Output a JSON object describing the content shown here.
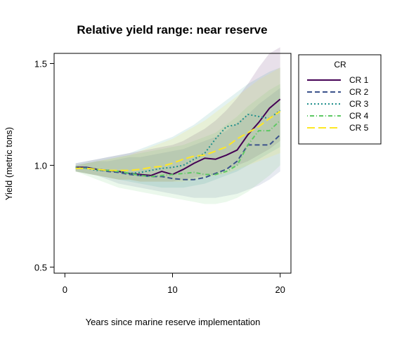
{
  "chart_data": {
    "type": "line",
    "title": "Relative yield range: near reserve",
    "xlabel": "Years since marine reserve implementation",
    "ylabel": "Yield (metric tons)",
    "xlim": [
      -1,
      21
    ],
    "ylim": [
      0.47,
      1.55
    ],
    "x_ticks": [
      0,
      10,
      20
    ],
    "x_tick_labels": [
      "0",
      "10",
      "20"
    ],
    "y_ticks": [
      0.5,
      1.0,
      1.5
    ],
    "y_tick_labels": [
      "0.5",
      "1.0",
      "1.5"
    ],
    "grid": false,
    "legend": {
      "title": "CR",
      "position": "right"
    },
    "x": [
      1,
      2,
      3,
      4,
      5,
      6,
      7,
      8,
      9,
      10,
      11,
      12,
      13,
      14,
      15,
      16,
      17,
      18,
      19,
      20
    ],
    "series": [
      {
        "name": "CR 1",
        "color": "#440154",
        "dash": "solid",
        "values": [
          0.99,
          0.99,
          0.98,
          0.975,
          0.97,
          0.96,
          0.955,
          0.95,
          0.97,
          0.955,
          0.98,
          1.01,
          1.035,
          1.03,
          1.05,
          1.075,
          1.15,
          1.21,
          1.28,
          1.325
        ],
        "band_upper": [
          1.01,
          1.02,
          1.03,
          1.04,
          1.05,
          1.06,
          1.07,
          1.08,
          1.09,
          1.1,
          1.12,
          1.15,
          1.18,
          1.22,
          1.27,
          1.33,
          1.4,
          1.48,
          1.55,
          1.58
        ],
        "band_lower": [
          0.97,
          0.96,
          0.95,
          0.94,
          0.93,
          0.93,
          0.92,
          0.92,
          0.92,
          0.92,
          0.93,
          0.94,
          0.95,
          0.96,
          0.98,
          1.0,
          1.02,
          1.05,
          1.08,
          1.12
        ]
      },
      {
        "name": "CR 2",
        "color": "#3b528b",
        "dash": "dashed",
        "values": [
          0.985,
          0.99,
          0.98,
          0.97,
          0.965,
          0.955,
          0.95,
          0.945,
          0.945,
          0.935,
          0.93,
          0.93,
          0.94,
          0.96,
          0.98,
          1.02,
          1.1,
          1.1,
          1.1,
          1.15
        ],
        "band_upper": [
          1.0,
          1.01,
          1.02,
          1.02,
          1.03,
          1.04,
          1.04,
          1.05,
          1.06,
          1.07,
          1.08,
          1.1,
          1.12,
          1.14,
          1.17,
          1.21,
          1.25,
          1.3,
          1.34,
          1.38
        ],
        "band_lower": [
          0.97,
          0.96,
          0.95,
          0.93,
          0.91,
          0.9,
          0.89,
          0.88,
          0.87,
          0.86,
          0.85,
          0.84,
          0.84,
          0.84,
          0.85,
          0.86,
          0.88,
          0.9,
          0.93,
          0.97
        ]
      },
      {
        "name": "CR 3",
        "color": "#21908c",
        "dash": "dotted",
        "values": [
          0.99,
          0.985,
          0.975,
          0.975,
          0.97,
          0.96,
          0.965,
          0.975,
          0.985,
          0.99,
          1.0,
          1.03,
          1.06,
          1.13,
          1.19,
          1.2,
          1.25,
          1.24,
          1.23,
          1.27
        ],
        "band_upper": [
          1.01,
          1.02,
          1.03,
          1.04,
          1.05,
          1.06,
          1.08,
          1.1,
          1.12,
          1.14,
          1.17,
          1.2,
          1.24,
          1.28,
          1.32,
          1.36,
          1.4,
          1.43,
          1.46,
          1.48
        ],
        "band_lower": [
          0.97,
          0.96,
          0.95,
          0.94,
          0.93,
          0.92,
          0.91,
          0.9,
          0.89,
          0.89,
          0.89,
          0.9,
          0.91,
          0.93,
          0.95,
          0.97,
          1.0,
          1.03,
          1.06,
          1.09
        ]
      },
      {
        "name": "CR 4",
        "color": "#5dc863",
        "dash": "dashdot",
        "values": [
          0.985,
          0.985,
          0.98,
          0.975,
          0.97,
          0.96,
          0.95,
          0.945,
          0.95,
          0.955,
          0.96,
          0.965,
          0.955,
          0.955,
          0.97,
          1.0,
          1.1,
          1.17,
          1.17,
          1.22
        ],
        "band_upper": [
          1.0,
          1.01,
          1.02,
          1.03,
          1.04,
          1.05,
          1.06,
          1.07,
          1.08,
          1.09,
          1.1,
          1.12,
          1.14,
          1.16,
          1.2,
          1.24,
          1.29,
          1.33,
          1.37,
          1.4
        ],
        "band_lower": [
          0.97,
          0.95,
          0.93,
          0.91,
          0.89,
          0.88,
          0.87,
          0.86,
          0.85,
          0.84,
          0.83,
          0.82,
          0.81,
          0.81,
          0.82,
          0.84,
          0.87,
          0.91,
          0.95,
          1.0
        ]
      },
      {
        "name": "CR 5",
        "color": "#fde725",
        "dash": "longdash",
        "values": [
          0.985,
          0.985,
          0.98,
          0.975,
          0.975,
          0.975,
          0.98,
          0.99,
          0.995,
          1.01,
          1.03,
          1.045,
          1.05,
          1.07,
          1.09,
          1.13,
          1.16,
          1.19,
          1.23,
          1.265
        ],
        "band_upper": [
          1.0,
          1.01,
          1.02,
          1.03,
          1.04,
          1.05,
          1.07,
          1.09,
          1.11,
          1.13,
          1.16,
          1.19,
          1.22,
          1.26,
          1.3,
          1.34,
          1.38,
          1.42,
          1.45,
          1.48
        ],
        "band_lower": [
          0.97,
          0.96,
          0.95,
          0.94,
          0.93,
          0.93,
          0.92,
          0.92,
          0.92,
          0.92,
          0.92,
          0.93,
          0.94,
          0.95,
          0.96,
          0.98,
          1.0,
          1.02,
          1.04,
          1.06
        ]
      }
    ]
  }
}
